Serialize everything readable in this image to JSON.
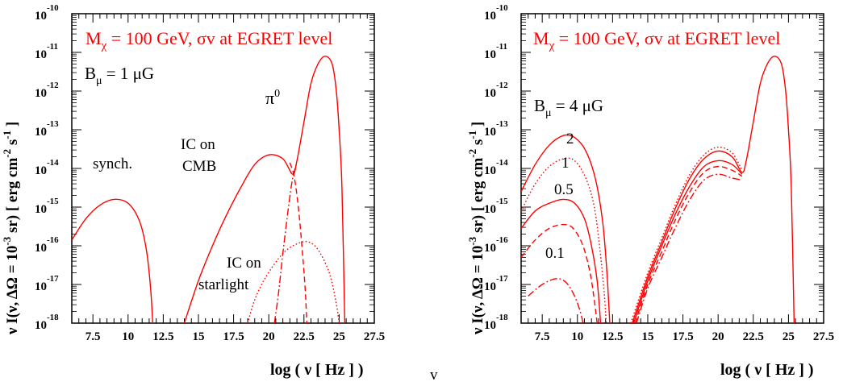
{
  "colors": {
    "curve": "#ff0000",
    "axis": "#000000"
  },
  "center_mark": "v",
  "chart_data": [
    {
      "type": "line",
      "title": "M_χ = 100 GeV, σv at EGRET level",
      "xlabel": "log ( ν [ Hz ] )",
      "ylabel": "ν  I(ν, ΔΩ = 10⁻³ sr) [ erg  cm⁻²  s⁻¹ ]",
      "xlim": [
        6,
        27.5
      ],
      "ylim_log10": [
        -18,
        -10
      ],
      "x_ticks": [
        "7.5",
        "10",
        "12.5",
        "15",
        "17.5",
        "20",
        "22.5",
        "25",
        "27.5"
      ],
      "y_ticks": [
        "-18",
        "-17",
        "-16",
        "-15",
        "-14",
        "-13",
        "-12",
        "-11",
        "-10"
      ],
      "annotations": [
        "B_μ = 1 μG",
        "π⁰",
        "synch.",
        "IC on",
        "CMB",
        "IC on",
        "starlight"
      ],
      "series": [
        {
          "style": "solid",
          "points": [
            [
              6.0,
              -15.85
            ],
            [
              7.0,
              -15.3
            ],
            [
              8.0,
              -14.95
            ],
            [
              9.0,
              -14.8
            ],
            [
              10.0,
              -14.9
            ],
            [
              10.8,
              -15.35
            ],
            [
              11.3,
              -16.1
            ],
            [
              11.6,
              -17.1
            ],
            [
              11.75,
              -18
            ]
          ]
        },
        {
          "style": "solid",
          "points": [
            [
              14.0,
              -18
            ],
            [
              15.0,
              -16.9
            ],
            [
              16.0,
              -16.0
            ],
            [
              17.0,
              -15.2
            ],
            [
              18.0,
              -14.5
            ],
            [
              19.0,
              -13.9
            ],
            [
              20.0,
              -13.65
            ],
            [
              21.0,
              -13.75
            ],
            [
              21.7,
              -14.15
            ],
            [
              22.0,
              -13.8
            ],
            [
              22.5,
              -12.8
            ],
            [
              23.0,
              -11.8
            ],
            [
              23.5,
              -11.3
            ],
            [
              24.0,
              -11.1
            ],
            [
              24.5,
              -11.3
            ],
            [
              24.8,
              -12.0
            ],
            [
              25.0,
              -13.0
            ],
            [
              25.2,
              -14.5
            ],
            [
              25.4,
              -18
            ]
          ]
        },
        {
          "style": "dashed",
          "points": [
            [
              21.5,
              -13.85
            ],
            [
              21.8,
              -14.2
            ],
            [
              22.1,
              -15.0
            ],
            [
              22.4,
              -16.2
            ],
            [
              22.6,
              -17.2
            ],
            [
              22.7,
              -18
            ]
          ]
        },
        {
          "style": "dashdot",
          "points": [
            [
              20.4,
              -18
            ],
            [
              20.7,
              -17.2
            ],
            [
              21.0,
              -16.2
            ],
            [
              21.4,
              -15.0
            ],
            [
              21.7,
              -14.25
            ],
            [
              22.0,
              -13.85
            ]
          ]
        },
        {
          "style": "dotted",
          "points": [
            [
              18.5,
              -18
            ],
            [
              19.0,
              -17.4
            ],
            [
              19.8,
              -16.8
            ],
            [
              21.0,
              -16.2
            ],
            [
              22.0,
              -15.95
            ],
            [
              22.8,
              -15.9
            ],
            [
              23.5,
              -16.1
            ],
            [
              24.3,
              -16.7
            ],
            [
              24.8,
              -17.5
            ],
            [
              25.0,
              -18
            ]
          ]
        }
      ]
    },
    {
      "type": "line",
      "title": "M_χ = 100 GeV, σv at EGRET level",
      "xlabel": "log ( ν [ Hz ] )",
      "ylabel": "ν  I(ν, ΔΩ = 10⁻³ sr) [ erg  cm⁻²  s⁻¹ ]",
      "xlim": [
        6,
        27.5
      ],
      "ylim_log10": [
        -18,
        -10
      ],
      "x_ticks": [
        "7.5",
        "10",
        "12.5",
        "15",
        "17.5",
        "20",
        "22.5",
        "25",
        "27.5"
      ],
      "y_ticks": [
        "-18",
        "-17",
        "-16",
        "-15",
        "-14",
        "-13",
        "-12",
        "-11",
        "-10"
      ],
      "annotations": [
        "B_μ = 4 μG",
        "2",
        "1",
        "0.5",
        "0.1"
      ],
      "series": [
        {
          "style": "solid",
          "points": [
            [
              6.0,
              -14.6
            ],
            [
              7.0,
              -13.9
            ],
            [
              8.0,
              -13.4
            ],
            [
              9.0,
              -13.15
            ],
            [
              9.8,
              -13.2
            ],
            [
              10.6,
              -13.55
            ],
            [
              11.3,
              -14.3
            ],
            [
              11.8,
              -15.4
            ],
            [
              12.1,
              -16.7
            ],
            [
              12.3,
              -18
            ]
          ]
        },
        {
          "style": "dotted",
          "points": [
            [
              6.0,
              -15.1
            ],
            [
              7.0,
              -14.4
            ],
            [
              8.0,
              -13.95
            ],
            [
              9.0,
              -13.75
            ],
            [
              9.8,
              -13.8
            ],
            [
              10.6,
              -14.25
            ],
            [
              11.2,
              -15.0
            ],
            [
              11.6,
              -16.1
            ],
            [
              11.9,
              -17.2
            ],
            [
              12.05,
              -18
            ]
          ]
        },
        {
          "style": "solid",
          "points": [
            [
              6.0,
              -15.55
            ],
            [
              7.0,
              -15.1
            ],
            [
              8.0,
              -14.9
            ],
            [
              9.0,
              -14.8
            ],
            [
              9.8,
              -14.9
            ],
            [
              10.5,
              -15.3
            ],
            [
              11.0,
              -16.0
            ],
            [
              11.4,
              -16.9
            ],
            [
              11.65,
              -18
            ]
          ]
        },
        {
          "style": "dashed",
          "points": [
            [
              6.0,
              -16.3
            ],
            [
              7.0,
              -15.85
            ],
            [
              8.0,
              -15.55
            ],
            [
              9.0,
              -15.45
            ],
            [
              9.7,
              -15.55
            ],
            [
              10.4,
              -16.0
            ],
            [
              10.9,
              -16.7
            ],
            [
              11.2,
              -17.4
            ],
            [
              11.4,
              -18
            ]
          ]
        },
        {
          "style": "dashdot",
          "points": [
            [
              6.5,
              -17.3
            ],
            [
              7.5,
              -17.0
            ],
            [
              8.5,
              -16.85
            ],
            [
              9.2,
              -16.95
            ],
            [
              9.8,
              -17.3
            ],
            [
              10.2,
              -17.7
            ],
            [
              10.4,
              -18
            ]
          ]
        },
        {
          "style": "solid",
          "points": [
            [
              13.9,
              -18
            ],
            [
              15.0,
              -16.8
            ],
            [
              16.0,
              -15.9
            ],
            [
              17.0,
              -15.0
            ],
            [
              18.0,
              -14.25
            ],
            [
              19.0,
              -13.75
            ],
            [
              20.0,
              -13.55
            ],
            [
              21.0,
              -13.7
            ],
            [
              21.7,
              -14.1
            ],
            [
              22.0,
              -13.8
            ],
            [
              22.5,
              -12.8
            ],
            [
              23.0,
              -11.8
            ],
            [
              23.5,
              -11.3
            ],
            [
              24.0,
              -11.1
            ],
            [
              24.5,
              -11.3
            ],
            [
              24.8,
              -12.0
            ],
            [
              25.0,
              -13.0
            ],
            [
              25.2,
              -14.5
            ],
            [
              25.4,
              -18
            ]
          ]
        },
        {
          "style": "dotted",
          "points": [
            [
              13.8,
              -18
            ],
            [
              15.0,
              -16.7
            ],
            [
              16.0,
              -15.8
            ],
            [
              17.0,
              -14.9
            ],
            [
              18.0,
              -14.15
            ],
            [
              19.0,
              -13.65
            ],
            [
              20.0,
              -13.45
            ],
            [
              21.0,
              -13.6
            ],
            [
              21.7,
              -14.05
            ]
          ]
        },
        {
          "style": "solid",
          "points": [
            [
              14.0,
              -18
            ],
            [
              15.0,
              -16.9
            ],
            [
              16.0,
              -16.0
            ],
            [
              17.0,
              -15.15
            ],
            [
              18.0,
              -14.45
            ],
            [
              19.0,
              -13.95
            ],
            [
              20.0,
              -13.8
            ],
            [
              21.0,
              -13.9
            ],
            [
              21.7,
              -14.15
            ]
          ]
        },
        {
          "style": "dashed",
          "points": [
            [
              14.1,
              -18
            ],
            [
              15.0,
              -17.0
            ],
            [
              16.0,
              -16.15
            ],
            [
              17.0,
              -15.3
            ],
            [
              18.0,
              -14.6
            ],
            [
              19.0,
              -14.1
            ],
            [
              20.0,
              -13.95
            ],
            [
              21.0,
              -14.05
            ],
            [
              21.7,
              -14.2
            ]
          ]
        },
        {
          "style": "dashdot",
          "points": [
            [
              14.2,
              -18
            ],
            [
              15.0,
              -17.1
            ],
            [
              16.0,
              -16.3
            ],
            [
              17.0,
              -15.5
            ],
            [
              18.0,
              -14.8
            ],
            [
              19.0,
              -14.3
            ],
            [
              20.0,
              -14.15
            ],
            [
              21.0,
              -14.25
            ],
            [
              21.7,
              -14.3
            ]
          ]
        }
      ]
    }
  ]
}
